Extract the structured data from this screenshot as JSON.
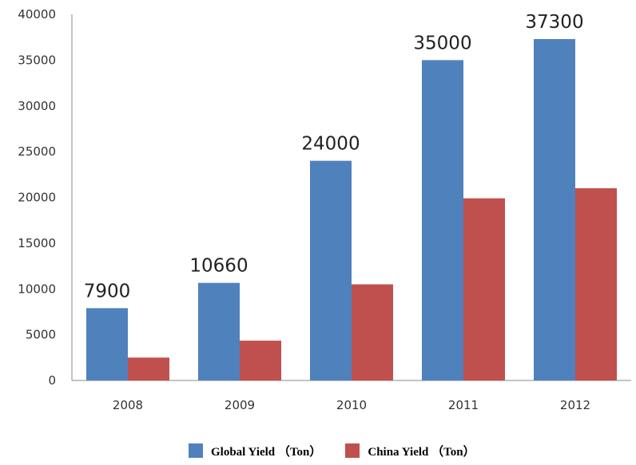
{
  "chart_data": {
    "type": "bar",
    "categories": [
      "2008",
      "2009",
      "2010",
      "2011",
      "2012"
    ],
    "series": [
      {
        "name": "Global Yield （Ton）",
        "values": [
          7900,
          10660,
          24000,
          35000,
          37300
        ],
        "color": "#4F81BD",
        "data_labels": [
          "7900",
          "10660",
          "24000",
          "35000",
          "37300"
        ]
      },
      {
        "name": "China Yield （Ton）",
        "values": [
          2500,
          4350,
          10500,
          19900,
          21000
        ],
        "color": "#C0504D"
      }
    ],
    "yticks": [
      "0",
      "5000",
      "10000",
      "15000",
      "20000",
      "25000",
      "30000",
      "35000",
      "40000"
    ],
    "ylim": [
      0,
      40000
    ],
    "title": "",
    "xlabel": "",
    "ylabel": "",
    "grid": false,
    "legend_position": "bottom"
  }
}
